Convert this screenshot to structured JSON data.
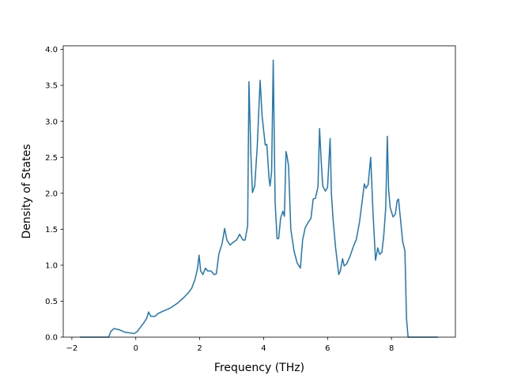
{
  "chart_data": {
    "type": "line",
    "title": "",
    "xlabel": "Frequency (THz)",
    "ylabel": "Density of States",
    "xlim": [
      -2.27,
      10.0
    ],
    "ylim": [
      0.0,
      4.05
    ],
    "xticks": [
      -2,
      0,
      2,
      4,
      6,
      8
    ],
    "xtick_labels": [
      "−2",
      "0",
      "2",
      "4",
      "6",
      "8"
    ],
    "yticks": [
      0.0,
      0.5,
      1.0,
      1.5,
      2.0,
      2.5,
      3.0,
      3.5,
      4.0
    ],
    "ytick_labels": [
      "0.0",
      "0.5",
      "1.0",
      "1.5",
      "2.0",
      "2.5",
      "3.0",
      "3.5",
      "4.0"
    ],
    "grid": false,
    "legend": "none",
    "line_color": "#1f77b4",
    "series": [
      {
        "x": [
          -1.75,
          -1.2,
          -0.85,
          -0.78,
          -0.68,
          -0.5,
          -0.35,
          -0.05,
          0.05,
          0.25,
          0.34,
          0.4,
          0.47,
          0.6,
          0.7,
          0.9,
          1.1,
          1.3,
          1.5,
          1.65,
          1.75,
          1.85,
          1.93,
          1.98,
          2.03,
          2.1,
          2.18,
          2.25,
          2.35,
          2.45,
          2.52,
          2.6,
          2.7,
          2.78,
          2.85,
          2.95,
          3.05,
          3.15,
          3.25,
          3.35,
          3.42,
          3.5,
          3.54,
          3.6,
          3.65,
          3.72,
          3.8,
          3.89,
          3.95,
          4.05,
          4.1,
          4.17,
          4.2,
          4.25,
          4.3,
          4.36,
          4.42,
          4.47,
          4.53,
          4.6,
          4.65,
          4.7,
          4.73,
          4.78,
          4.85,
          4.95,
          5.05,
          5.15,
          5.22,
          5.3,
          5.4,
          5.48,
          5.55,
          5.62,
          5.7,
          5.75,
          5.8,
          5.85,
          5.93,
          6.0,
          6.08,
          6.12,
          6.17,
          6.25,
          6.35,
          6.4,
          6.47,
          6.52,
          6.6,
          6.7,
          6.8,
          6.9,
          7.0,
          7.08,
          7.15,
          7.2,
          7.27,
          7.35,
          7.42,
          7.5,
          7.57,
          7.63,
          7.7,
          7.76,
          7.82,
          7.87,
          7.91,
          7.96,
          8.05,
          8.12,
          8.18,
          8.22,
          8.28,
          8.35,
          8.42,
          8.47,
          8.52,
          8.58,
          9.45
        ],
        "y": [
          0.0,
          0.0,
          0.0,
          0.08,
          0.12,
          0.1,
          0.07,
          0.05,
          0.08,
          0.2,
          0.26,
          0.35,
          0.29,
          0.29,
          0.33,
          0.37,
          0.41,
          0.47,
          0.55,
          0.62,
          0.68,
          0.8,
          0.95,
          1.14,
          0.92,
          0.87,
          0.96,
          0.92,
          0.92,
          0.87,
          0.88,
          1.16,
          1.3,
          1.51,
          1.35,
          1.28,
          1.32,
          1.35,
          1.43,
          1.35,
          1.35,
          1.55,
          3.55,
          2.55,
          2.01,
          2.1,
          2.65,
          3.57,
          3.08,
          2.67,
          2.68,
          2.2,
          2.1,
          2.3,
          3.85,
          1.87,
          1.37,
          1.37,
          1.65,
          1.75,
          1.68,
          2.58,
          2.52,
          2.38,
          1.5,
          1.2,
          1.03,
          0.96,
          1.35,
          1.52,
          1.6,
          1.65,
          1.92,
          1.93,
          2.09,
          2.9,
          2.45,
          2.1,
          2.03,
          2.08,
          2.76,
          2.0,
          1.65,
          1.25,
          0.87,
          0.92,
          1.09,
          0.99,
          1.02,
          1.12,
          1.25,
          1.36,
          1.6,
          1.88,
          2.13,
          2.07,
          2.12,
          2.5,
          1.75,
          1.07,
          1.24,
          1.15,
          1.18,
          1.42,
          1.8,
          2.79,
          2.05,
          1.8,
          1.67,
          1.71,
          1.9,
          1.92,
          1.65,
          1.33,
          1.2,
          0.26,
          0.0,
          0.0,
          0.0
        ]
      }
    ]
  }
}
